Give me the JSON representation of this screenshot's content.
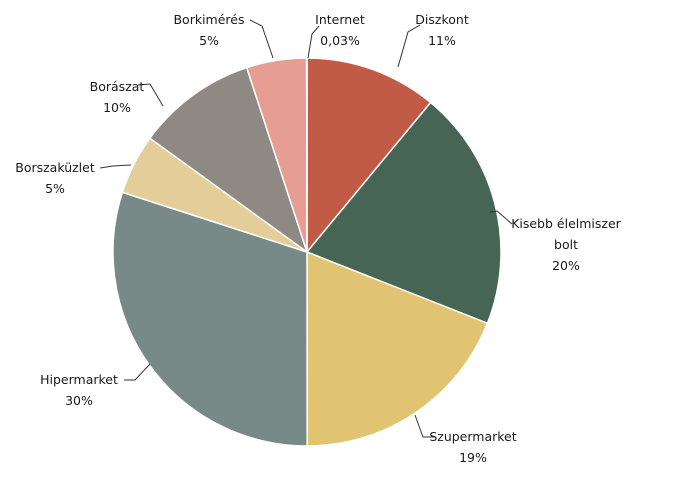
{
  "chart_data": {
    "type": "pie",
    "title": "",
    "slices": [
      {
        "label": "Diszkont",
        "label_lines": [
          "Diszkont"
        ],
        "value": 11,
        "value_label": "11%",
        "color": "#c25b46"
      },
      {
        "label": "Kisebb élelmiszer bolt",
        "label_lines": [
          "Kisebb élelmiszer",
          "bolt"
        ],
        "value": 20,
        "value_label": "20%",
        "color": "#476555"
      },
      {
        "label": "Szupermarket",
        "label_lines": [
          "Szupermarket"
        ],
        "value": 19,
        "value_label": "19%",
        "color": "#e1c472"
      },
      {
        "label": "Hipermarket",
        "label_lines": [
          "Hipermarket"
        ],
        "value": 30,
        "value_label": "30%",
        "color": "#778a87"
      },
      {
        "label": "Borszaküzlet",
        "label_lines": [
          "Borszaküzlet"
        ],
        "value": 5,
        "value_label": "5%",
        "color": "#e3ce9a"
      },
      {
        "label": "Borászat",
        "label_lines": [
          "Borászat"
        ],
        "value": 10,
        "value_label": "10%",
        "color": "#8f8983"
      },
      {
        "label": "Borkimérés",
        "label_lines": [
          "Borkimérés"
        ],
        "value": 5,
        "value_label": "5%",
        "color": "#e69d93"
      },
      {
        "label": "Internet",
        "label_lines": [
          "Internet"
        ],
        "value": 0.03,
        "value_label": "0,03%",
        "color": "#7a8a8e"
      }
    ]
  }
}
